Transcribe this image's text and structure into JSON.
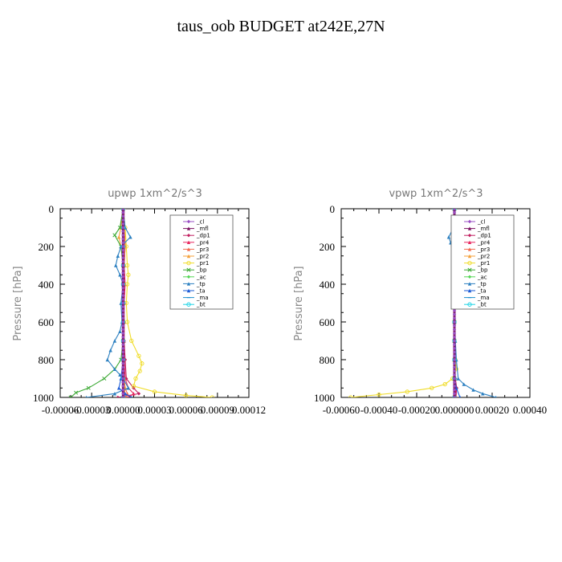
{
  "title": "taus_oob  BUDGET at242E,27N",
  "chart_data": [
    {
      "type": "line",
      "title": "upwp   1xm^2/s^3",
      "ylabel": "Pressure [hPa]",
      "xlim": [
        -6e-05,
        0.00012
      ],
      "ylim": [
        1000,
        0
      ],
      "xticks": [
        -6e-05,
        -3e-05,
        0.0,
        3e-05,
        6e-05,
        9e-05,
        0.00012
      ],
      "xtick_labels": [
        "-0.00006",
        "-0.00003",
        "0.00000",
        "0.00003",
        "0.00006",
        "0.00009",
        "0.00012"
      ],
      "yticks": [
        0,
        200,
        400,
        600,
        800,
        1000
      ],
      "ytick_labels": [
        "0",
        "200",
        "400",
        "600",
        "800",
        "1000"
      ],
      "legend_position": "top-right",
      "series": [
        {
          "name": "_cl",
          "color": "#9a4fc4",
          "marker": "diamond",
          "x": [
            0,
            0,
            0,
            0,
            0,
            0,
            0,
            0,
            0,
            0,
            0
          ],
          "y": [
            0,
            100,
            200,
            300,
            400,
            500,
            600,
            700,
            800,
            900,
            1000
          ]
        },
        {
          "name": "_mfl",
          "color": "#7a1060",
          "marker": "triangle",
          "x": [
            0,
            0,
            0,
            0,
            0,
            0,
            0,
            0,
            0,
            0,
            0
          ],
          "y": [
            0,
            100,
            200,
            300,
            400,
            500,
            600,
            700,
            800,
            900,
            1000
          ]
        },
        {
          "name": "_dp1",
          "color": "#c21e60",
          "marker": "diamond",
          "x": [
            1e-06,
            1e-06,
            2e-06,
            1e-06,
            1e-06,
            1e-06,
            1e-06,
            1e-06,
            2e-06,
            3e-06,
            1e-05,
            1.5e-05,
            -5e-06
          ],
          "y": [
            0,
            100,
            200,
            300,
            400,
            500,
            600,
            700,
            800,
            900,
            950,
            980,
            1000
          ]
        },
        {
          "name": "_pr4",
          "color": "#e8265e",
          "marker": "triangle",
          "x": [
            0,
            0,
            0,
            1e-06,
            2e-06,
            1e-06,
            1e-06,
            1e-06,
            1e-06,
            2e-06,
            5e-06,
            1e-05,
            5e-06
          ],
          "y": [
            0,
            100,
            200,
            300,
            400,
            500,
            600,
            700,
            800,
            900,
            950,
            980,
            1000
          ]
        },
        {
          "name": "_pr3",
          "color": "#f26a4f",
          "marker": "triangle",
          "x": [
            0,
            1e-06,
            2e-06,
            1e-06,
            0,
            0,
            0,
            0,
            0,
            1e-06,
            2e-06,
            4e-06,
            3e-06
          ],
          "y": [
            0,
            100,
            200,
            300,
            400,
            500,
            600,
            700,
            800,
            900,
            950,
            980,
            1000
          ]
        },
        {
          "name": "_pr2",
          "color": "#f5a13a",
          "marker": "triangle",
          "x": [
            0,
            -2e-06,
            -4e-06,
            -2e-06,
            0,
            0,
            0,
            0,
            0,
            0,
            1e-06,
            2e-06,
            1e-06
          ],
          "y": [
            0,
            100,
            150,
            200,
            300,
            400,
            500,
            600,
            700,
            800,
            900,
            950,
            1000
          ]
        },
        {
          "name": "_pr1",
          "color": "#f0dc28",
          "marker": "circle",
          "x": [
            0,
            2e-06,
            3e-06,
            4e-06,
            5e-06,
            4e-06,
            3e-06,
            4e-06,
            8e-06,
            1.5e-05,
            1.8e-05,
            1.6e-05,
            1.2e-05,
            1e-05,
            3e-05,
            6e-05,
            8.5e-05
          ],
          "y": [
            0,
            100,
            200,
            300,
            350,
            400,
            500,
            600,
            700,
            780,
            820,
            860,
            900,
            940,
            970,
            990,
            1000
          ]
        },
        {
          "name": "_bp",
          "color": "#3aa832",
          "marker": "cross",
          "x": [
            0,
            -3e-06,
            -8e-06,
            -2e-06,
            0,
            0,
            0,
            0,
            0,
            -2e-06,
            -8e-06,
            -1.8e-05,
            -3.3e-05,
            -4.5e-05,
            -5e-05
          ],
          "y": [
            0,
            100,
            140,
            200,
            300,
            400,
            500,
            600,
            700,
            800,
            850,
            900,
            950,
            975,
            1000
          ]
        },
        {
          "name": "_ac",
          "color": "#55d655",
          "marker": "diamond",
          "x": [
            0,
            0,
            0,
            0,
            0,
            0,
            0,
            0,
            0,
            0,
            0
          ],
          "y": [
            0,
            100,
            200,
            300,
            400,
            500,
            600,
            700,
            800,
            900,
            1000
          ]
        },
        {
          "name": "_tp",
          "color": "#2a7fc0",
          "marker": "triangle",
          "x": [
            0,
            2e-06,
            7e-06,
            -2e-06,
            -5e-06,
            -7e-06,
            -3e-06,
            0,
            -2e-06,
            -1e-06,
            -3e-06,
            -8e-06,
            -1.2e-05,
            -1.5e-05,
            -8e-06,
            -3e-06,
            0,
            5e-06,
            -8e-06,
            -3.5e-05
          ],
          "y": [
            0,
            100,
            150,
            200,
            250,
            300,
            350,
            400,
            500,
            600,
            650,
            700,
            750,
            800,
            850,
            880,
            900,
            950,
            980,
            1000
          ]
        },
        {
          "name": "_ta",
          "color": "#1a5ad6",
          "marker": "triangle",
          "x": [
            0,
            0,
            0,
            0,
            0,
            0,
            0,
            0,
            0,
            -2e-06,
            -4e-06,
            2e-06,
            8e-06
          ],
          "y": [
            0,
            100,
            200,
            300,
            400,
            500,
            600,
            700,
            800,
            900,
            950,
            980,
            1000
          ]
        },
        {
          "name": "_ma",
          "color": "#1e8fd0",
          "marker": "dash",
          "x": [
            0,
            0,
            0,
            0,
            0,
            0,
            0,
            0,
            0,
            0,
            0
          ],
          "y": [
            0,
            100,
            200,
            300,
            400,
            500,
            600,
            700,
            800,
            900,
            1000
          ]
        },
        {
          "name": "_bt",
          "color": "#1ed4e6",
          "marker": "circle",
          "x": [
            0,
            0,
            0,
            0,
            0,
            0,
            0,
            0,
            0,
            0,
            0
          ],
          "y": [
            0,
            100,
            200,
            300,
            400,
            500,
            600,
            700,
            800,
            900,
            1000
          ]
        }
      ]
    },
    {
      "type": "line",
      "title": "vpwp   1xm^2/s^3",
      "ylabel": "Pressure [hPa]",
      "xlim": [
        -0.0006,
        0.0004
      ],
      "ylim": [
        1000,
        0
      ],
      "xticks": [
        -0.0006,
        -0.0004,
        -0.0002,
        0.0,
        0.0002,
        0.0004
      ],
      "xtick_labels": [
        "-0.00060",
        "-0.00040",
        "-0.00020",
        "0.000000",
        "0.00020",
        "0.00040"
      ],
      "yticks": [
        0,
        200,
        400,
        600,
        800,
        1000
      ],
      "ytick_labels": [
        "0",
        "200",
        "400",
        "600",
        "800",
        "1000"
      ],
      "legend_position": "top-right",
      "series": [
        {
          "name": "_cl",
          "color": "#9a4fc4",
          "marker": "diamond",
          "x": [
            0,
            0,
            0,
            0,
            0,
            0,
            0,
            0,
            0,
            0,
            0
          ],
          "y": [
            0,
            100,
            200,
            300,
            400,
            500,
            600,
            700,
            800,
            900,
            1000
          ]
        },
        {
          "name": "_mfl",
          "color": "#7a1060",
          "marker": "triangle",
          "x": [
            0,
            0,
            0,
            0,
            0,
            0,
            0,
            0,
            0,
            0,
            0
          ],
          "y": [
            0,
            100,
            200,
            300,
            400,
            500,
            600,
            700,
            800,
            900,
            1000
          ]
        },
        {
          "name": "_dp1",
          "color": "#c21e60",
          "marker": "diamond",
          "x": [
            0,
            0,
            0,
            0,
            0,
            0,
            0,
            0,
            0,
            5e-06,
            1.2e-05,
            8e-06
          ],
          "y": [
            0,
            100,
            200,
            300,
            400,
            500,
            600,
            700,
            800,
            900,
            950,
            1000
          ]
        },
        {
          "name": "_pr4",
          "color": "#e8265e",
          "marker": "triangle",
          "x": [
            0,
            0,
            0,
            0,
            0,
            0,
            0,
            0,
            0,
            4e-06,
            8e-06,
            5e-06
          ],
          "y": [
            0,
            100,
            200,
            300,
            400,
            500,
            600,
            700,
            800,
            900,
            950,
            1000
          ]
        },
        {
          "name": "_pr3",
          "color": "#f26a4f",
          "marker": "triangle",
          "x": [
            0,
            0,
            0,
            0,
            0,
            0,
            0,
            0,
            0,
            0,
            3e-06,
            2e-06
          ],
          "y": [
            0,
            100,
            200,
            300,
            400,
            500,
            600,
            700,
            800,
            900,
            950,
            1000
          ]
        },
        {
          "name": "_pr2",
          "color": "#f5a13a",
          "marker": "triangle",
          "x": [
            0,
            1e-05,
            2e-05,
            5e-06,
            0,
            0,
            0,
            0,
            0,
            0,
            0,
            0
          ],
          "y": [
            0,
            100,
            150,
            200,
            300,
            400,
            500,
            600,
            700,
            800,
            900,
            1000
          ]
        },
        {
          "name": "_pr1",
          "color": "#f0dc28",
          "marker": "circle",
          "x": [
            0,
            0,
            0,
            0,
            0,
            0,
            0,
            0,
            5e-06,
            1e-05,
            -1e-05,
            -5e-05,
            -0.00012,
            -0.00025,
            -0.0004,
            -0.00055
          ],
          "y": [
            0,
            100,
            200,
            300,
            400,
            500,
            600,
            700,
            800,
            850,
            900,
            930,
            950,
            970,
            985,
            1000
          ]
        },
        {
          "name": "_bp",
          "color": "#3aa832",
          "marker": "cross",
          "x": [
            0,
            0,
            0,
            0,
            0,
            0,
            0,
            0,
            0,
            0,
            0
          ],
          "y": [
            0,
            100,
            200,
            300,
            400,
            500,
            600,
            700,
            800,
            900,
            1000
          ]
        },
        {
          "name": "_ac",
          "color": "#55d655",
          "marker": "diamond",
          "x": [
            0,
            0,
            0,
            0,
            0,
            0,
            0,
            0,
            0,
            0,
            0
          ],
          "y": [
            0,
            100,
            200,
            300,
            400,
            500,
            600,
            700,
            800,
            900,
            1000
          ]
        },
        {
          "name": "_tp",
          "color": "#2a7fc0",
          "marker": "triangle",
          "x": [
            0,
            -5e-06,
            -3e-05,
            -2e-05,
            0,
            0,
            0,
            0,
            5e-06,
            1e-05,
            2e-05,
            5e-05,
            0.0001,
            0.00015,
            0.00022
          ],
          "y": [
            0,
            100,
            150,
            180,
            250,
            400,
            500,
            600,
            700,
            800,
            900,
            930,
            960,
            980,
            1000
          ]
        },
        {
          "name": "_ta",
          "color": "#1a5ad6",
          "marker": "triangle",
          "x": [
            0,
            0,
            0,
            0,
            0,
            0,
            0,
            0,
            0,
            0,
            1e-05,
            3e-05
          ],
          "y": [
            0,
            100,
            200,
            300,
            400,
            500,
            600,
            700,
            800,
            900,
            950,
            1000
          ]
        },
        {
          "name": "_ma",
          "color": "#1e8fd0",
          "marker": "dash",
          "x": [
            0,
            0,
            0,
            0,
            0,
            0,
            0,
            0,
            0,
            0,
            0
          ],
          "y": [
            0,
            100,
            200,
            300,
            400,
            500,
            600,
            700,
            800,
            900,
            1000
          ]
        },
        {
          "name": "_bt",
          "color": "#1ed4e6",
          "marker": "circle",
          "x": [
            0,
            0,
            0,
            0,
            0,
            0,
            0,
            0,
            0,
            0,
            0
          ],
          "y": [
            0,
            100,
            200,
            300,
            400,
            500,
            600,
            700,
            800,
            900,
            1000
          ]
        }
      ]
    }
  ]
}
